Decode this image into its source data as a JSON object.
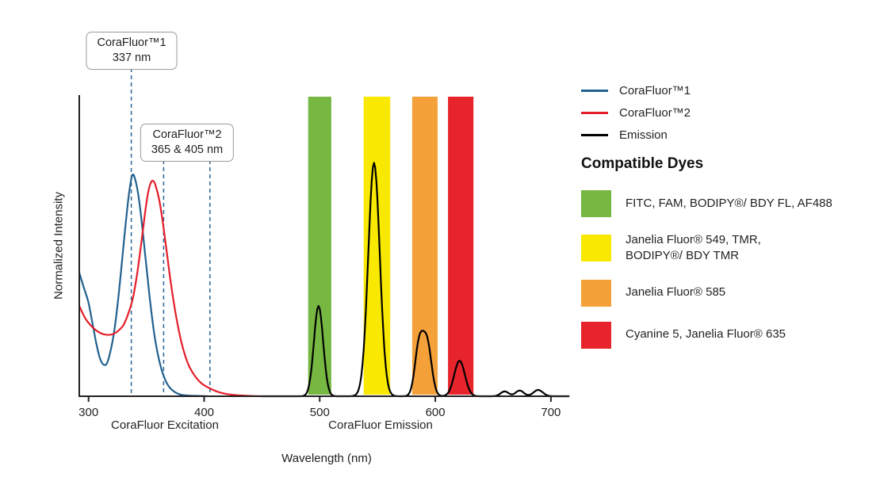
{
  "chart_data": {
    "type": "line",
    "title": "",
    "xlabel": "Wavelength (nm)",
    "ylabel": "Normalized Intensity",
    "x_group_labels": {
      "excitation": "CoraFluor Excitation",
      "emission": "CoraFluor Emission"
    },
    "xlim": [
      300,
      715
    ],
    "ylim": [
      0,
      1
    ],
    "x_ticks": [
      300,
      400,
      500,
      600,
      700
    ],
    "grid": false,
    "axis_color": "#231f20",
    "annotations": {
      "dashed_line_color": "#2a6496",
      "dashed_lines_nm": [
        337,
        365,
        405
      ],
      "callouts": [
        {
          "line1": "CoraFluor™1",
          "line2": "337 nm",
          "points_to_nm": [
            337
          ]
        },
        {
          "line1": "CoraFluor™2",
          "line2": "365 & 405 nm",
          "points_to_nm": [
            365,
            405
          ]
        }
      ]
    },
    "bands": [
      {
        "name": "green-filter-band",
        "from": 490,
        "to": 510,
        "color": "#77b843"
      },
      {
        "name": "yellow-filter-band",
        "from": 538,
        "to": 561,
        "color": "#f9e900"
      },
      {
        "name": "orange-filter-band",
        "from": 580,
        "to": 602,
        "color": "#f4a13a"
      },
      {
        "name": "red-filter-band",
        "from": 611,
        "to": 633,
        "color": "#e7242b"
      }
    ],
    "series": [
      {
        "name": "CoraFluor™1",
        "color": "#21618f",
        "points": [
          [
            292,
            0.41
          ],
          [
            296,
            0.36
          ],
          [
            300,
            0.31
          ],
          [
            304,
            0.23
          ],
          [
            307,
            0.17
          ],
          [
            310,
            0.125
          ],
          [
            313,
            0.105
          ],
          [
            316,
            0.11
          ],
          [
            319,
            0.15
          ],
          [
            322,
            0.21
          ],
          [
            325,
            0.3
          ],
          [
            328,
            0.41
          ],
          [
            331,
            0.53
          ],
          [
            334,
            0.64
          ],
          [
            336,
            0.7
          ],
          [
            338,
            0.735
          ],
          [
            340,
            0.725
          ],
          [
            343,
            0.67
          ],
          [
            346,
            0.58
          ],
          [
            349,
            0.47
          ],
          [
            352,
            0.36
          ],
          [
            355,
            0.26
          ],
          [
            358,
            0.18
          ],
          [
            362,
            0.105
          ],
          [
            366,
            0.058
          ],
          [
            370,
            0.03
          ],
          [
            375,
            0.013
          ],
          [
            380,
            0.005
          ],
          [
            387,
            0.002
          ],
          [
            395,
            0.001
          ],
          [
            403,
            0
          ]
        ]
      },
      {
        "name": "CoraFluor™2",
        "color": "#e41e2a",
        "points": [
          [
            292,
            0.3
          ],
          [
            297,
            0.26
          ],
          [
            302,
            0.235
          ],
          [
            308,
            0.215
          ],
          [
            314,
            0.205
          ],
          [
            320,
            0.205
          ],
          [
            325,
            0.215
          ],
          [
            330,
            0.235
          ],
          [
            334,
            0.27
          ],
          [
            338,
            0.32
          ],
          [
            341,
            0.38
          ],
          [
            344,
            0.46
          ],
          [
            347,
            0.55
          ],
          [
            350,
            0.64
          ],
          [
            352,
            0.685
          ],
          [
            354,
            0.71
          ],
          [
            356,
            0.715
          ],
          [
            358,
            0.7
          ],
          [
            361,
            0.655
          ],
          [
            364,
            0.585
          ],
          [
            367,
            0.5
          ],
          [
            370,
            0.41
          ],
          [
            373,
            0.33
          ],
          [
            376,
            0.26
          ],
          [
            380,
            0.185
          ],
          [
            384,
            0.13
          ],
          [
            388,
            0.092
          ],
          [
            393,
            0.062
          ],
          [
            398,
            0.042
          ],
          [
            403,
            0.03
          ],
          [
            409,
            0.019
          ],
          [
            415,
            0.011
          ],
          [
            422,
            0.006
          ],
          [
            430,
            0.003
          ],
          [
            440,
            0.001
          ],
          [
            450,
            0
          ]
        ]
      },
      {
        "name": "Emission",
        "color": "#000000",
        "peaks": [
          {
            "center": 499,
            "height": 0.3,
            "sigma": 4
          },
          {
            "center": 547,
            "height": 0.775,
            "sigma": 5
          },
          {
            "center": 586,
            "height": 0.168,
            "sigma": 3.6
          },
          {
            "center": 593,
            "height": 0.172,
            "sigma": 3.8
          },
          {
            "center": 621,
            "height": 0.118,
            "sigma": 4.6
          },
          {
            "center": 660,
            "height": 0.016,
            "sigma": 3.5
          },
          {
            "center": 673,
            "height": 0.019,
            "sigma": 3.5
          },
          {
            "center": 689,
            "height": 0.021,
            "sigma": 4
          }
        ]
      }
    ]
  },
  "legend": {
    "items": [
      {
        "label": "CoraFluor™1",
        "color": "#21618f"
      },
      {
        "label": "CoraFluor™2",
        "color": "#e41e2a"
      },
      {
        "label": "Emission",
        "color": "#000000"
      }
    ]
  },
  "dyes": {
    "title": "Compatible Dyes",
    "items": [
      {
        "label": "FITC, FAM, BODIPY®/ BDY FL, AF488",
        "color": "#77b843"
      },
      {
        "label": "Janelia Fluor® 549, TMR,\nBODIPY®/ BDY TMR",
        "color": "#f9e900"
      },
      {
        "label": "Janelia Fluor® 585",
        "color": "#f4a13a"
      },
      {
        "label": "Cyanine 5, Janelia Fluor® 635",
        "color": "#e7242b"
      }
    ]
  }
}
